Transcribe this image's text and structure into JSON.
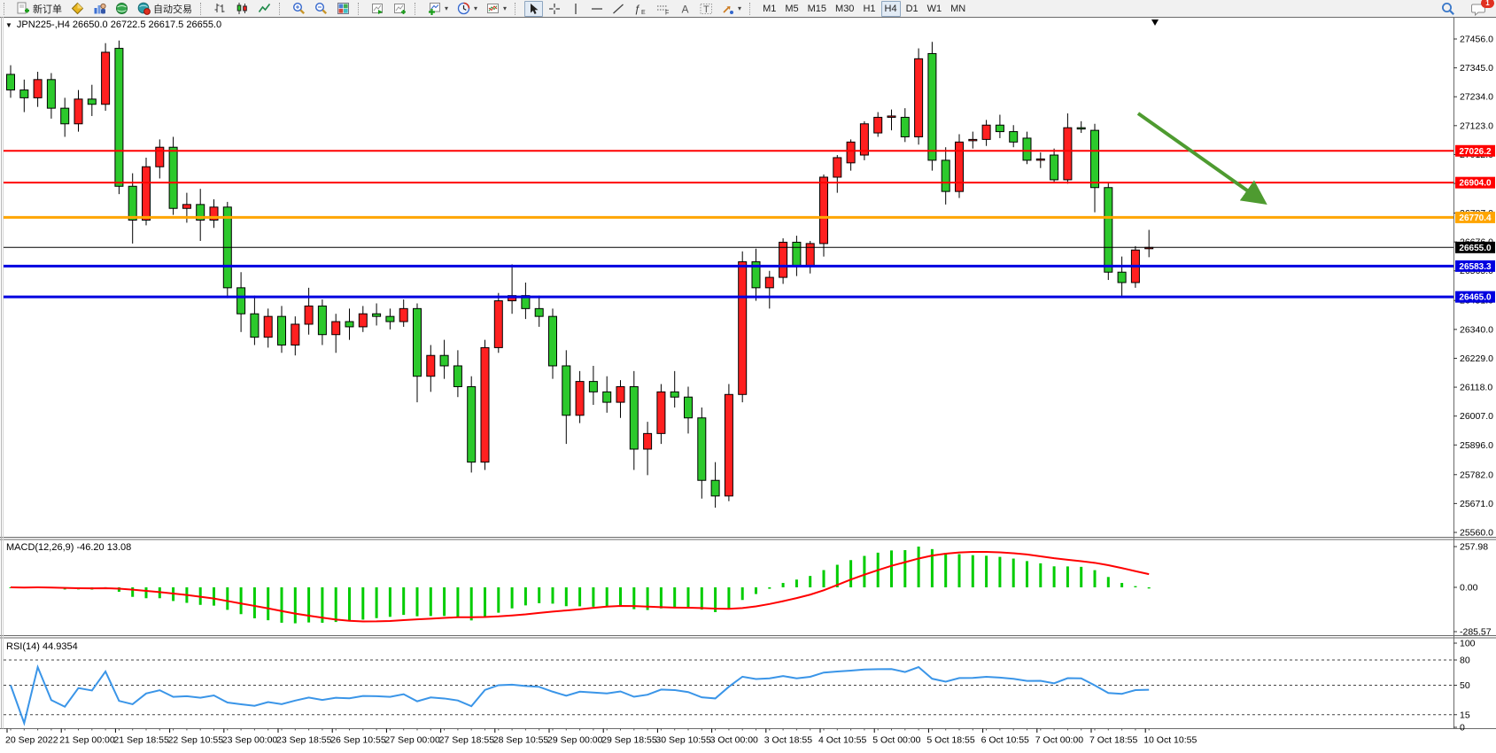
{
  "toolbar": {
    "groups": [
      {
        "name": "trade",
        "buttons": [
          {
            "icon": "new-order-icon",
            "label": "新订单",
            "name": "new-order-button"
          },
          {
            "icon": "indicator-list-icon",
            "name": "indicator-list-button"
          },
          {
            "icon": "market-watch-icon",
            "name": "market-watch-button"
          },
          {
            "icon": "navigator-icon",
            "name": "navigator-button"
          },
          {
            "icon": "auto-trading-icon",
            "label": "自动交易",
            "name": "auto-trading-button"
          }
        ]
      },
      {
        "name": "chart-type",
        "buttons": [
          {
            "icon": "bar-chart-icon",
            "name": "bar-chart-button"
          },
          {
            "icon": "candlestick-chart-icon",
            "name": "candlestick-chart-button"
          },
          {
            "icon": "line-chart-icon",
            "name": "line-chart-button"
          }
        ]
      },
      {
        "name": "zoom",
        "buttons": [
          {
            "icon": "zoom-in-icon",
            "name": "zoom-in-button"
          },
          {
            "icon": "zoom-out-icon",
            "name": "zoom-out-button"
          },
          {
            "icon": "tile-windows-icon",
            "name": "tile-windows-button"
          }
        ]
      },
      {
        "name": "scroll",
        "buttons": [
          {
            "icon": "auto-scroll-icon",
            "name": "auto-scroll-button"
          },
          {
            "icon": "chart-shift-icon",
            "name": "chart-shift-button"
          }
        ]
      },
      {
        "name": "objects",
        "buttons": [
          {
            "icon": "new-chart-icon",
            "dropdown": true,
            "name": "new-chart-button"
          },
          {
            "icon": "period-icon",
            "dropdown": true,
            "name": "periods-button"
          },
          {
            "icon": "template-icon",
            "dropdown": true,
            "name": "templates-button"
          }
        ]
      },
      {
        "name": "drawing",
        "buttons": [
          {
            "icon": "cursor-icon",
            "name": "cursor-button",
            "active": true
          },
          {
            "icon": "crosshair-icon",
            "name": "crosshair-button"
          },
          {
            "icon": "vertical-line-icon",
            "name": "vertical-line-button"
          },
          {
            "icon": "horizontal-line-icon",
            "name": "horizontal-line-button"
          },
          {
            "icon": "trendline-icon",
            "name": "trendline-button"
          },
          {
            "icon": "fibonacci-icon",
            "name": "fibonacci-button"
          },
          {
            "icon": "channel-icon",
            "name": "channel-button"
          },
          {
            "icon": "text-icon",
            "name": "text-button"
          },
          {
            "icon": "text-label-icon",
            "name": "text-label-button"
          },
          {
            "icon": "arrows-icon",
            "dropdown": true,
            "name": "arrows-button"
          }
        ]
      },
      {
        "name": "timeframes",
        "timeframe_buttons": [
          "M1",
          "M5",
          "M15",
          "M30",
          "H1",
          "H4",
          "D1",
          "W1",
          "MN"
        ],
        "selected": "H4"
      }
    ],
    "right": [
      {
        "icon": "search-icon",
        "name": "search-button"
      },
      {
        "icon": "chat-icon",
        "name": "notifications-button",
        "badge": "1"
      }
    ]
  },
  "chart_data": {
    "type": "candlestick",
    "title": "JPN225-,H4",
    "symbol_info": "JPN225-,H4  26650.0 26722.5 26617.5 26655.0",
    "symbol": "JPN225-",
    "timeframe": "H4",
    "last_bar": {
      "open": 26650.0,
      "high": 26722.5,
      "low": 26617.5,
      "close": 26655.0
    },
    "up_color": "#ff2020",
    "down_color": "#2cc92c",
    "wick_color": "#000000",
    "y_axis_ticks": [
      "27456.0",
      "27345.0",
      "27234.0",
      "27123.0",
      "27012.0",
      "26901.0",
      "26787.0",
      "26676.0",
      "26565.0",
      "26451.0",
      "26340.0",
      "26229.0",
      "26118.0",
      "26007.0",
      "25896.0",
      "25782.0",
      "25671.0",
      "25560.0"
    ],
    "x_labels": [
      "20 Sep 2022",
      "21 Sep 00:00",
      "21 Sep 18:55",
      "22 Sep 10:55",
      "23 Sep 00:00",
      "23 Sep 18:55",
      "26 Sep 10:55",
      "27 Sep 00:00",
      "27 Sep 18:55",
      "28 Sep 10:55",
      "29 Sep 00:00",
      "29 Sep 18:55",
      "30 Sep 10:55",
      "3 Oct 00:00",
      "3 Oct 18:55",
      "4 Oct 10:55",
      "5 Oct 00:00",
      "5 Oct 18:55",
      "6 Oct 10:55",
      "7 Oct 00:00",
      "7 Oct 18:55",
      "10 Oct 10:55"
    ],
    "bars_per_label": 4,
    "candles": [
      [
        27320,
        27355,
        27230,
        27260
      ],
      [
        27260,
        27300,
        27175,
        27230
      ],
      [
        27230,
        27330,
        27195,
        27300
      ],
      [
        27300,
        27325,
        27150,
        27190
      ],
      [
        27190,
        27230,
        27080,
        27130
      ],
      [
        27130,
        27260,
        27100,
        27225
      ],
      [
        27225,
        27280,
        27160,
        27205
      ],
      [
        27205,
        27440,
        27180,
        27405
      ],
      [
        27420,
        27450,
        26860,
        26890
      ],
      [
        26890,
        26940,
        26670,
        26760
      ],
      [
        26760,
        27000,
        26740,
        26965
      ],
      [
        26965,
        27070,
        26920,
        27040
      ],
      [
        27040,
        27080,
        26780,
        26805
      ],
      [
        26805,
        26865,
        26750,
        26820
      ],
      [
        26820,
        26880,
        26680,
        26760
      ],
      [
        26760,
        26840,
        26730,
        26810
      ],
      [
        26810,
        26830,
        26460,
        26500
      ],
      [
        26500,
        26560,
        26330,
        26400
      ],
      [
        26400,
        26470,
        26280,
        26310
      ],
      [
        26310,
        26420,
        26270,
        26390
      ],
      [
        26390,
        26430,
        26250,
        26280
      ],
      [
        26280,
        26390,
        26240,
        26360
      ],
      [
        26360,
        26500,
        26320,
        26430
      ],
      [
        26430,
        26455,
        26280,
        26320
      ],
      [
        26320,
        26400,
        26250,
        26370
      ],
      [
        26370,
        26420,
        26300,
        26350
      ],
      [
        26350,
        26430,
        26330,
        26400
      ],
      [
        26400,
        26440,
        26355,
        26390
      ],
      [
        26390,
        26420,
        26340,
        26370
      ],
      [
        26370,
        26455,
        26350,
        26420
      ],
      [
        26420,
        26440,
        26060,
        26160
      ],
      [
        26160,
        26280,
        26100,
        26240
      ],
      [
        26240,
        26300,
        26150,
        26200
      ],
      [
        26200,
        26260,
        26080,
        26120
      ],
      [
        26120,
        26160,
        25790,
        25830
      ],
      [
        25830,
        26300,
        25800,
        26270
      ],
      [
        26270,
        26480,
        26250,
        26450
      ],
      [
        26450,
        26590,
        26400,
        26470
      ],
      [
        26470,
        26520,
        26380,
        26420
      ],
      [
        26420,
        26470,
        26350,
        26390
      ],
      [
        26390,
        26420,
        26150,
        26200
      ],
      [
        26200,
        26260,
        25900,
        26010
      ],
      [
        26010,
        26180,
        25980,
        26140
      ],
      [
        26140,
        26200,
        26050,
        26100
      ],
      [
        26100,
        26160,
        26020,
        26060
      ],
      [
        26060,
        26145,
        26000,
        26120
      ],
      [
        26120,
        26180,
        25800,
        25880
      ],
      [
        25880,
        25985,
        25780,
        25940
      ],
      [
        25940,
        26130,
        25900,
        26100
      ],
      [
        26100,
        26180,
        26040,
        26080
      ],
      [
        26080,
        26120,
        25940,
        26000
      ],
      [
        26000,
        26040,
        25690,
        25760
      ],
      [
        25760,
        25830,
        25655,
        25700
      ],
      [
        25700,
        26130,
        25680,
        26090
      ],
      [
        26090,
        26640,
        26060,
        26600
      ],
      [
        26600,
        26650,
        26450,
        26500
      ],
      [
        26500,
        26565,
        26420,
        26540
      ],
      [
        26540,
        26690,
        26515,
        26675
      ],
      [
        26675,
        26700,
        26545,
        26585
      ],
      [
        26585,
        26680,
        26555,
        26670
      ],
      [
        26670,
        26935,
        26620,
        26925
      ],
      [
        26925,
        27010,
        26865,
        27000
      ],
      [
        26980,
        27070,
        26950,
        27060
      ],
      [
        27010,
        27140,
        26990,
        27130
      ],
      [
        27095,
        27175,
        27080,
        27155
      ],
      [
        27155,
        27185,
        27105,
        27160
      ],
      [
        27155,
        27190,
        27060,
        27080
      ],
      [
        27080,
        27420,
        27050,
        27380
      ],
      [
        27400,
        27445,
        26950,
        26990
      ],
      [
        26990,
        27040,
        26820,
        26870
      ],
      [
        26870,
        27090,
        26845,
        27060
      ],
      [
        27065,
        27100,
        27035,
        27070
      ],
      [
        27070,
        27145,
        27045,
        27125
      ],
      [
        27125,
        27165,
        27075,
        27100
      ],
      [
        27100,
        27125,
        27040,
        27060
      ],
      [
        27075,
        27100,
        26975,
        26990
      ],
      [
        26990,
        27020,
        26960,
        26995
      ],
      [
        27010,
        27035,
        26905,
        26915
      ],
      [
        26915,
        27170,
        26900,
        27115
      ],
      [
        27115,
        27140,
        27095,
        27110
      ],
      [
        27105,
        27130,
        26790,
        26885
      ],
      [
        26885,
        26905,
        26530,
        26560
      ],
      [
        26560,
        26620,
        26465,
        26520
      ],
      [
        26520,
        26660,
        26500,
        26645
      ],
      [
        26650,
        26722.5,
        26617.5,
        26655
      ]
    ],
    "price_lines": [
      {
        "price": 27026.2,
        "color": "#ff0000",
        "label": "27026.2",
        "width": 2,
        "badge": "#ff0000"
      },
      {
        "price": 26904.0,
        "color": "#ff0000",
        "label": "26904.0",
        "width": 2,
        "badge": "#ff0000"
      },
      {
        "price": 26770.4,
        "color": "#ffa500",
        "label": "26770.4",
        "width": 3,
        "badge": "#ffa500"
      },
      {
        "price": 26655.0,
        "color": "#000000",
        "label": "26655.0",
        "width": 1,
        "badge": "#000000",
        "type": "current-price"
      },
      {
        "price": 26583.3,
        "color": "#0000e0",
        "label": "26583.3",
        "width": 3,
        "badge": "#0000e0"
      },
      {
        "price": 26465.0,
        "color": "#0000e0",
        "label": "26465.0",
        "width": 3,
        "badge": "#0000e0"
      }
    ],
    "annotation_arrow": {
      "start": {
        "bar": 83.2,
        "price": 27170
      },
      "end": {
        "bar": 92.3,
        "price": 26835
      },
      "color": "#4e9b30"
    },
    "indicators": [
      {
        "name": "MACD",
        "params": "12,26,9",
        "label": "MACD(12,26,9) -46.20 13.08",
        "current_macd": -46.2,
        "current_signal": 13.08,
        "axis_ticks": [
          "257.98",
          "0.00",
          "-285.57"
        ],
        "histogram_color": "#00cc00",
        "signal_color": "#ff0000"
      },
      {
        "name": "RSI",
        "params": "14",
        "label": "RSI(14) 44.9354",
        "current_value": 44.9354,
        "axis_ticks": [
          "100",
          "80",
          "50",
          "15",
          "0"
        ],
        "levels": [
          80,
          50,
          15
        ],
        "line_color": "#3a95e8"
      }
    ]
  }
}
